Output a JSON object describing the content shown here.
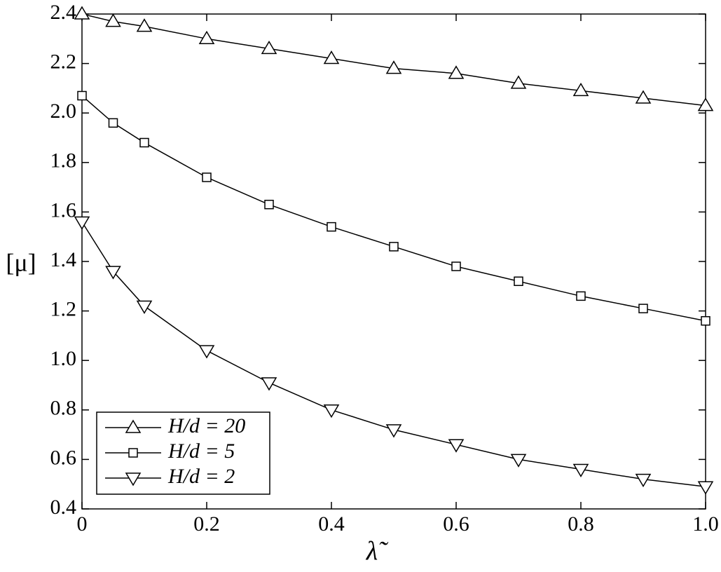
{
  "chart_data": {
    "type": "line",
    "x_label": "λ̃",
    "y_label": "[μ]",
    "x": [
      0,
      0.05,
      0.1,
      0.2,
      0.3,
      0.4,
      0.5,
      0.6,
      0.7,
      0.8,
      0.9,
      1.0
    ],
    "series": [
      {
        "name": "H/d = 20",
        "color": "#000000",
        "marker": "triangle-up",
        "values": [
          2.4,
          2.37,
          2.35,
          2.3,
          2.26,
          2.22,
          2.18,
          2.16,
          2.12,
          2.09,
          2.06,
          2.03
        ]
      },
      {
        "name": "H/d = 5",
        "color": "#000000",
        "marker": "square",
        "values": [
          2.07,
          1.96,
          1.88,
          1.74,
          1.63,
          1.54,
          1.46,
          1.38,
          1.32,
          1.26,
          1.21,
          1.16
        ]
      },
      {
        "name": "H/d = 2",
        "color": "#000000",
        "marker": "triangle-down",
        "values": [
          1.56,
          1.36,
          1.22,
          1.04,
          0.91,
          0.8,
          0.72,
          0.66,
          0.6,
          0.56,
          0.52,
          0.49
        ]
      }
    ],
    "xlim": [
      0,
      1.0
    ],
    "xticks": [
      0,
      0.2,
      0.4,
      0.6,
      0.8,
      {
        "value": 1.0,
        "label": "1.0"
      }
    ],
    "ylim": [
      0.4,
      2.4
    ],
    "yticks": [
      0.4,
      0.6,
      0.8,
      {
        "value": 1.0,
        "label": "1.0"
      },
      1.2,
      1.4,
      1.6,
      1.8,
      {
        "value": 2.0,
        "label": "2.0"
      },
      2.2,
      2.4
    ],
    "grid": false,
    "legend": "lower left"
  }
}
